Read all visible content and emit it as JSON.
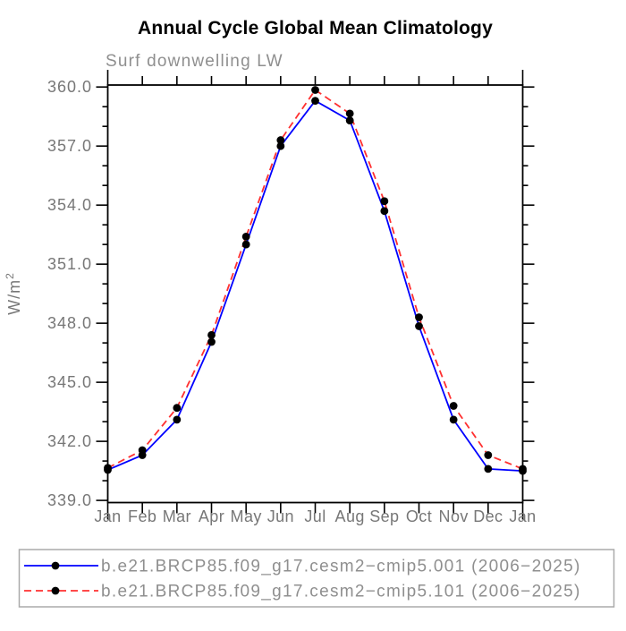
{
  "chart_data": {
    "type": "line",
    "title": "Annual Cycle Global Mean Climatology",
    "subtitle": "Surf downwelling LW",
    "ylabel_base": "W/m",
    "ylabel_exp": "2",
    "categories": [
      "Jan",
      "Feb",
      "Mar",
      "Apr",
      "May",
      "Jun",
      "Jul",
      "Aug",
      "Sep",
      "Oct",
      "Nov",
      "Dec",
      "Jan"
    ],
    "ylim": [
      338.89,
      360.1
    ],
    "yticks_major": [
      339.0,
      342.0,
      345.0,
      348.0,
      351.0,
      354.0,
      357.0,
      360.0
    ],
    "ytick_labels": [
      "339.0",
      "342.0",
      "345.0",
      "348.0",
      "351.0",
      "354.0",
      "357.0",
      "360.0"
    ],
    "ytick_minor_step": 1.0,
    "grid": "off",
    "legend_position": "bottom",
    "legend_border_color": "#aaaaaa",
    "marker": "filled-circle",
    "marker_color": "#000000",
    "series": [
      {
        "name": "b.e21.BRCP85.f09_g17.cesm2−cmip5.001 (2006−2025)",
        "color": "#0000ff",
        "style": "solid",
        "values": [
          340.55,
          341.3,
          343.1,
          347.05,
          352.0,
          357.0,
          359.3,
          358.3,
          353.7,
          347.85,
          343.1,
          340.6,
          340.5
        ]
      },
      {
        "name": "b.e21.BRCP85.f09_g17.cesm2−cmip5.101 (2006−2025)",
        "color": "#ff3030",
        "style": "dashed",
        "values": [
          340.65,
          341.55,
          343.7,
          347.4,
          352.4,
          357.3,
          359.85,
          358.65,
          354.2,
          348.3,
          343.8,
          341.3,
          340.6
        ]
      }
    ]
  }
}
